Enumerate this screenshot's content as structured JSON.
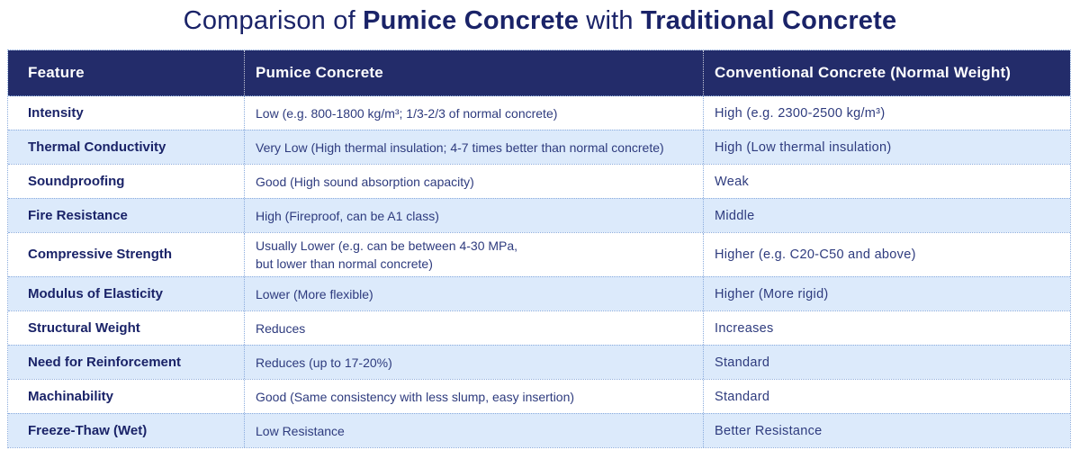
{
  "title": {
    "part1": "Comparison of ",
    "part2": "Pumice Concrete",
    "part3": " with ",
    "part4": "Traditional Concrete"
  },
  "table": {
    "headers": [
      "Feature",
      "Pumice Concrete",
      "Conventional Concrete (Normal Weight)"
    ],
    "rows": [
      {
        "feature": "Intensity",
        "pumice": "Low (e.g. 800-1800 kg/m³; 1/3-2/3 of normal concrete)",
        "conventional": "High (e.g. 2300-2500 kg/m³)"
      },
      {
        "feature": "Thermal Conductivity",
        "pumice": "Very Low (High thermal insulation; 4-7 times better than normal concrete)",
        "conventional": "High (Low thermal insulation)"
      },
      {
        "feature": "Soundproofing",
        "pumice": "Good (High sound absorption capacity)",
        "conventional": "Weak"
      },
      {
        "feature": "Fire Resistance",
        "pumice": "High (Fireproof, can be A1 class)",
        "conventional": "Middle"
      },
      {
        "feature": "Compressive Strength",
        "pumice": "Usually Lower (e.g. can be between 4-30 MPa,\nbut lower than normal concrete)",
        "conventional": "Higher (e.g. C20-C50 and above)"
      },
      {
        "feature": "Modulus of Elasticity",
        "pumice": "Lower (More flexible)",
        "conventional": "Higher (More rigid)"
      },
      {
        "feature": "Structural Weight",
        "pumice": "Reduces",
        "conventional": "Increases"
      },
      {
        "feature": "Need for Reinforcement",
        "pumice": "Reduces (up to 17-20%)",
        "conventional": "Standard"
      },
      {
        "feature": "Machinability",
        "pumice": "Good (Same consistency with less slump, easy insertion)",
        "conventional": "Standard"
      },
      {
        "feature": "Freeze-Thaw (Wet)",
        "pumice": "Low Resistance",
        "conventional": "Better Resistance"
      }
    ],
    "colors": {
      "header_bg": "#232c6a",
      "title_text": "#1a2368",
      "body_text": "#2e3b7e",
      "alt_row_bg": "#dceafb",
      "border": "#8aabdd"
    }
  }
}
